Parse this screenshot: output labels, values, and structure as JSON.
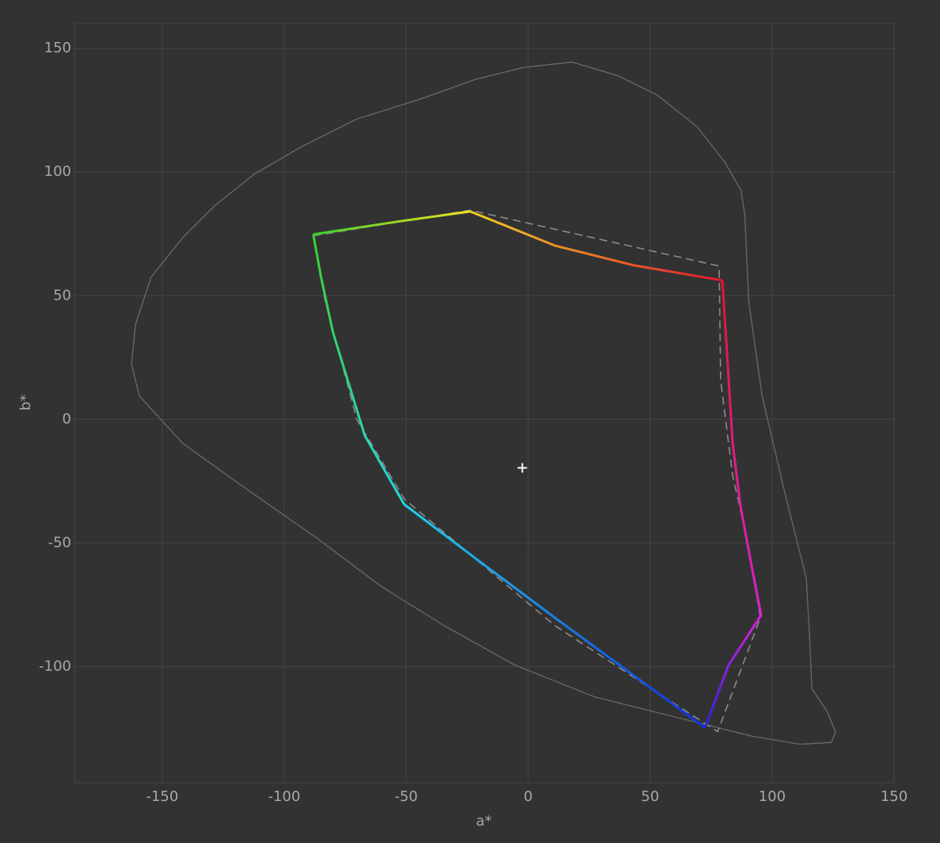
{
  "chart_data": {
    "type": "line",
    "xlabel": "a*",
    "ylabel": "b*",
    "xlim": [
      -186,
      150
    ],
    "ylim": [
      -147,
      160
    ],
    "xticks": [
      -150,
      -100,
      -50,
      0,
      50,
      100,
      150
    ],
    "yticks": [
      -100,
      -50,
      0,
      50,
      100,
      150
    ],
    "grid": true,
    "series": [
      {
        "color": "#666666",
        "style": "solid",
        "x": [
          18.0,
          36.8,
          53.0,
          69.3,
          80.7,
          87.2,
          88.8,
          90.4,
          95.9,
          105.0,
          114.0,
          115.3,
          116.3,
          122.8,
          126.0,
          124.3,
          111.4,
          92.0,
          59.5,
          27.1,
          -5.4,
          -34.5,
          -60.5,
          -86.4,
          -118.9,
          -141.6,
          -159.4,
          -162.6,
          -161.0,
          -154.6,
          -141.6,
          -128.6,
          -112.4,
          -92.9,
          -70.2,
          -44.3,
          -21.6,
          -2.1,
          18.0
        ],
        "values": [
          144.5,
          139.0,
          131.1,
          118.3,
          103.9,
          92.7,
          83.1,
          47.9,
          9.5,
          -28.9,
          -64.1,
          -86.5,
          -108.9,
          -118.6,
          -126.6,
          -130.7,
          -131.4,
          -128.2,
          -120.2,
          -112.2,
          -99.4,
          -83.4,
          -67.4,
          -48.2,
          -25.8,
          -9.7,
          9.5,
          22.3,
          38.3,
          57.5,
          73.5,
          86.3,
          99.1,
          110.3,
          121.5,
          129.5,
          137.5,
          142.3,
          144.5
        ]
      },
      {
        "color": "#8a8a8a",
        "style": "dashed",
        "x": [
          -88.1,
          -23.8,
          78.3,
          78.9,
          83.8,
          90.4,
          95.2,
          77.7,
          53.0,
          10.9,
          -50.8,
          -70.2,
          -83.2,
          -88.1
        ],
        "values": [
          74.2,
          84.6,
          62.0,
          15.9,
          -22.6,
          -51.4,
          -80.2,
          -126.3,
          -110.6,
          -83.4,
          -32.2,
          -0.1,
          47.9,
          74.2
        ]
      },
      {
        "color": [
          "#3cd02a",
          "#f0e020"
        ],
        "style": "solid",
        "x": [
          -88.1,
          -54.0,
          -23.8
        ],
        "values": [
          74.8,
          79.9,
          84.1
        ]
      },
      {
        "color": [
          "#f0d020",
          "#e01830"
        ],
        "style": "solid",
        "x": [
          -23.8,
          10.9,
          43.3,
          79.6
        ],
        "values": [
          84.1,
          70.3,
          62.3,
          56.2
        ]
      },
      {
        "color": [
          "#e01830",
          "#e020d0"
        ],
        "style": "solid",
        "x": [
          79.6,
          81.6,
          83.8,
          87.1,
          91.3,
          95.5
        ],
        "values": [
          56.2,
          25.5,
          -9.5,
          -35.4,
          -57.8,
          -79.2
        ]
      },
      {
        "color": [
          "#e020e0",
          "#3020e0"
        ],
        "style": "solid",
        "x": [
          95.5,
          82.2,
          72.5
        ],
        "values": [
          -79.2,
          -99.3,
          -124.7
        ]
      },
      {
        "color": [
          "#1030e0",
          "#20d0e8"
        ],
        "style": "solid",
        "x": [
          72.5,
          10.9,
          -21.6,
          -50.8
        ],
        "values": [
          -124.7,
          -80.2,
          -56.2,
          -34.4
        ]
      },
      {
        "color": [
          "#20d8e0",
          "#3cd02a"
        ],
        "style": "solid",
        "x": [
          -50.8,
          -67.0,
          -80.0,
          -84.9,
          -88.1
        ],
        "values": [
          -34.4,
          -6.5,
          35.1,
          57.5,
          74.8
        ]
      },
      {
        "color": "#ffffff",
        "style": "plus",
        "x": [
          -2.4
        ],
        "values": [
          -19.6
        ]
      }
    ]
  }
}
